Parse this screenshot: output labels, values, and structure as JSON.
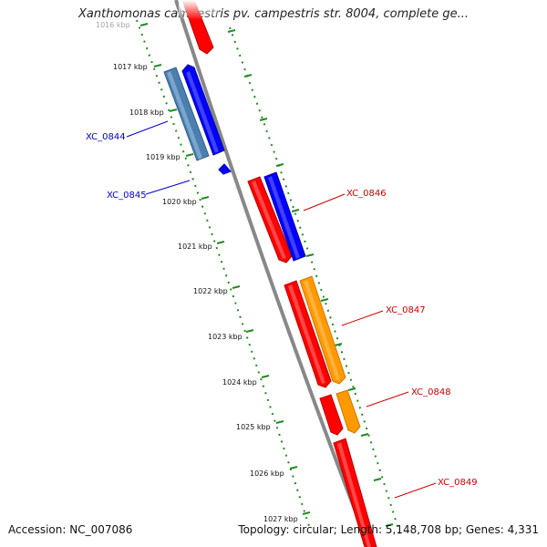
{
  "title": "Xanthomonas campestris pv. campestris str. 8004, complete ge...",
  "footer": {
    "accession": "Accession: NC_007086",
    "stats": "Topology: circular; Length: 5,148,708 bp; Genes: 4,331"
  },
  "colors": {
    "forward": "#ff0000",
    "reverse": "#0000ff",
    "orange": "#ff9900",
    "steel": "#4a7fb0",
    "backbone": "#888888",
    "ticks": "#228b22",
    "label_forward": "#cc0000",
    "label_reverse": "#0000cc"
  },
  "ticks": [
    {
      "label": "1016 kbp"
    },
    {
      "label": "1017 kbp"
    },
    {
      "label": "1018 kbp"
    },
    {
      "label": "1019 kbp"
    },
    {
      "label": "1020 kbp"
    },
    {
      "label": "1021 kbp"
    },
    {
      "label": "1022 kbp"
    },
    {
      "label": "1023 kbp"
    },
    {
      "label": "1024 kbp"
    },
    {
      "label": "1025 kbp"
    },
    {
      "label": "1026 kbp"
    },
    {
      "label": "1027 kbp"
    }
  ],
  "gene_labels": {
    "xc0844": "XC_0844",
    "xc0845": "XC_0845",
    "xc0846": "XC_0846",
    "xc0847": "XC_0847",
    "xc0848": "XC_0848",
    "xc0849": "XC_0849"
  }
}
